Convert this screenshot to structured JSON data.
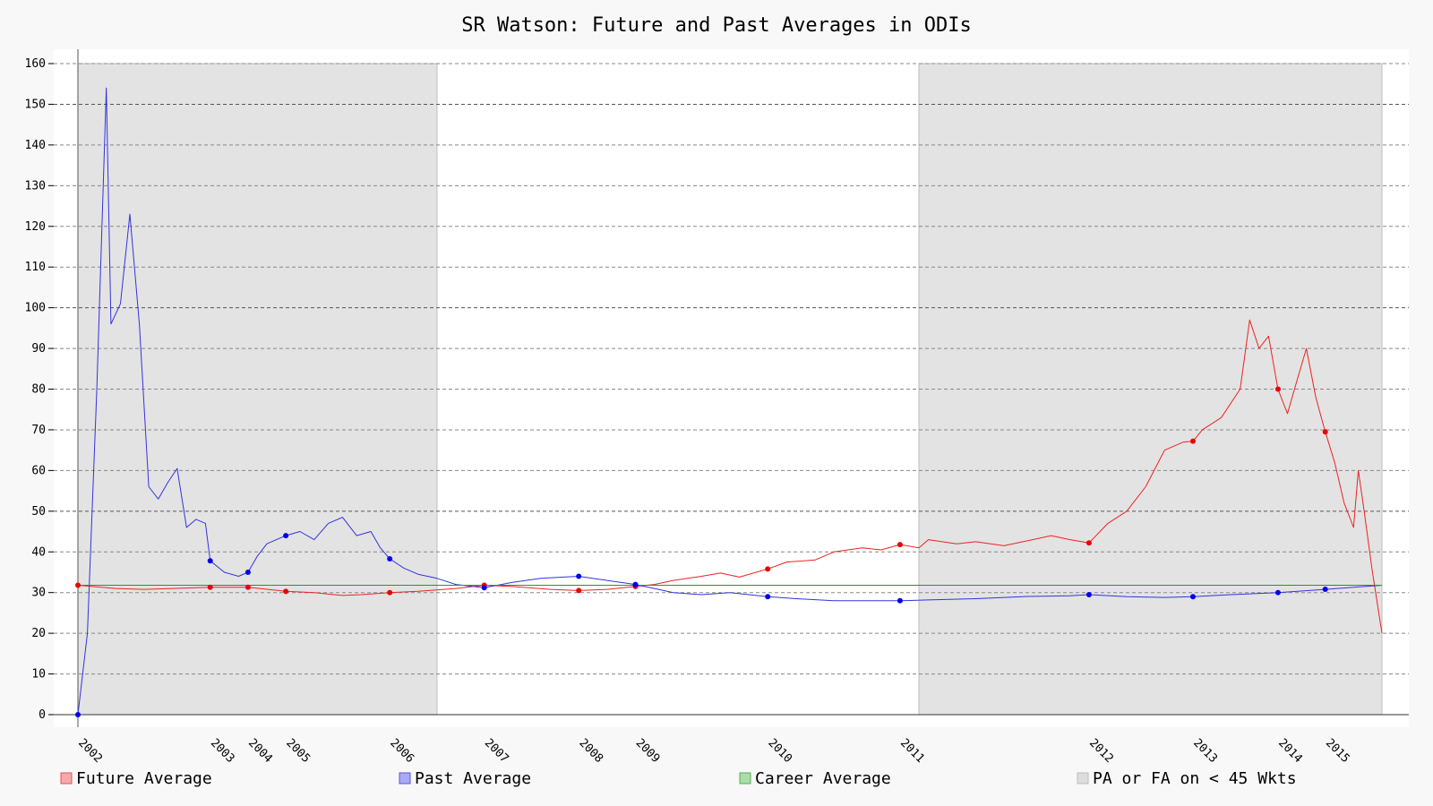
{
  "chart_data": {
    "type": "line",
    "title": "SR Watson: Future and Past Averages in ODIs",
    "xlabel": "",
    "ylabel": "",
    "ylim": [
      0,
      160
    ],
    "y_ticks": [
      0,
      10,
      20,
      30,
      40,
      50,
      60,
      70,
      80,
      90,
      100,
      110,
      120,
      130,
      140,
      150,
      160
    ],
    "grid": true,
    "x_range": [
      2002,
      2015.8
    ],
    "x_tick_labels": [
      {
        "label": "2002",
        "x": 2002.0
      },
      {
        "label": "2003",
        "x": 2003.4
      },
      {
        "label": "2004",
        "x": 2003.8
      },
      {
        "label": "2005",
        "x": 2004.2
      },
      {
        "label": "2006",
        "x": 2005.3
      },
      {
        "label": "2007",
        "x": 2006.3
      },
      {
        "label": "2008",
        "x": 2007.3
      },
      {
        "label": "2009",
        "x": 2007.9
      },
      {
        "label": "2010",
        "x": 2009.3
      },
      {
        "label": "2011",
        "x": 2010.7
      },
      {
        "label": "2012",
        "x": 2012.7
      },
      {
        "label": "2013",
        "x": 2013.8
      },
      {
        "label": "2014",
        "x": 2014.7
      },
      {
        "label": "2015",
        "x": 2015.2
      }
    ],
    "shaded_regions": [
      {
        "x": [
          2002.0,
          2005.8
        ],
        "label": "PA or FA on < 45 Wkts"
      },
      {
        "x": [
          2010.9,
          2015.8
        ],
        "label": "PA or FA on < 45 Wkts"
      }
    ],
    "series": [
      {
        "name": "Future Average",
        "color": "#ee2222",
        "points": [
          [
            2002.0,
            31.8
          ],
          [
            2002.4,
            31.0
          ],
          [
            2002.7,
            30.8
          ],
          [
            2003.0,
            31.0
          ],
          [
            2003.4,
            31.3
          ],
          [
            2003.8,
            31.3
          ],
          [
            2004.2,
            30.3
          ],
          [
            2004.5,
            30.0
          ],
          [
            2004.8,
            29.3
          ],
          [
            2005.0,
            29.5
          ],
          [
            2005.3,
            30.0
          ],
          [
            2005.6,
            30.3
          ],
          [
            2006.0,
            31.0
          ],
          [
            2006.3,
            31.8
          ],
          [
            2006.6,
            31.5
          ],
          [
            2007.0,
            30.8
          ],
          [
            2007.3,
            30.5
          ],
          [
            2007.6,
            30.8
          ],
          [
            2007.9,
            31.5
          ],
          [
            2008.1,
            32.0
          ],
          [
            2008.3,
            33.0
          ],
          [
            2008.6,
            34.0
          ],
          [
            2008.8,
            34.8
          ],
          [
            2009.0,
            33.8
          ],
          [
            2009.3,
            35.8
          ],
          [
            2009.5,
            37.5
          ],
          [
            2009.8,
            38.0
          ],
          [
            2010.0,
            40.0
          ],
          [
            2010.3,
            41.0
          ],
          [
            2010.5,
            40.5
          ],
          [
            2010.7,
            41.8
          ],
          [
            2010.9,
            41.0
          ],
          [
            2011.0,
            43.0
          ],
          [
            2011.3,
            42.0
          ],
          [
            2011.5,
            42.5
          ],
          [
            2011.8,
            41.5
          ],
          [
            2012.0,
            42.5
          ],
          [
            2012.3,
            44.0
          ],
          [
            2012.5,
            43.0
          ],
          [
            2012.7,
            42.2
          ],
          [
            2012.9,
            47.0
          ],
          [
            2013.1,
            50.0
          ],
          [
            2013.3,
            56.0
          ],
          [
            2013.5,
            65.0
          ],
          [
            2013.7,
            67.0
          ],
          [
            2013.8,
            67.2
          ],
          [
            2013.9,
            70.0
          ],
          [
            2014.1,
            73.0
          ],
          [
            2014.3,
            80.0
          ],
          [
            2014.4,
            97.0
          ],
          [
            2014.5,
            90.0
          ],
          [
            2014.6,
            93.0
          ],
          [
            2014.7,
            80.0
          ],
          [
            2014.8,
            74.0
          ],
          [
            2014.9,
            82.0
          ],
          [
            2015.0,
            90.0
          ],
          [
            2015.1,
            78.0
          ],
          [
            2015.2,
            69.5
          ],
          [
            2015.3,
            62.0
          ],
          [
            2015.4,
            52.0
          ],
          [
            2015.5,
            46.0
          ],
          [
            2015.55,
            60.0
          ],
          [
            2015.6,
            52.0
          ],
          [
            2015.7,
            35.0
          ],
          [
            2015.8,
            20.0
          ]
        ]
      },
      {
        "name": "Past Average",
        "color": "#3333dd",
        "points": [
          [
            2002.0,
            0
          ],
          [
            2002.1,
            20.0
          ],
          [
            2002.2,
            80.0
          ],
          [
            2002.3,
            154.0
          ],
          [
            2002.35,
            96.0
          ],
          [
            2002.45,
            101.0
          ],
          [
            2002.55,
            123.0
          ],
          [
            2002.65,
            96.0
          ],
          [
            2002.75,
            56.0
          ],
          [
            2002.85,
            53.0
          ],
          [
            2002.95,
            57.0
          ],
          [
            2003.05,
            60.5
          ],
          [
            2003.15,
            46.0
          ],
          [
            2003.25,
            48.0
          ],
          [
            2003.35,
            47.0
          ],
          [
            2003.4,
            37.8
          ],
          [
            2003.55,
            35.0
          ],
          [
            2003.7,
            34.0
          ],
          [
            2003.8,
            35.0
          ],
          [
            2003.9,
            39.0
          ],
          [
            2004.0,
            42.0
          ],
          [
            2004.2,
            44.0
          ],
          [
            2004.35,
            45.0
          ],
          [
            2004.5,
            43.0
          ],
          [
            2004.65,
            47.0
          ],
          [
            2004.8,
            48.5
          ],
          [
            2004.95,
            44.0
          ],
          [
            2005.1,
            45.0
          ],
          [
            2005.2,
            41.0
          ],
          [
            2005.3,
            38.3
          ],
          [
            2005.45,
            36.0
          ],
          [
            2005.6,
            34.5
          ],
          [
            2005.8,
            33.5
          ],
          [
            2006.0,
            32.0
          ],
          [
            2006.3,
            31.2
          ],
          [
            2006.6,
            32.5
          ],
          [
            2006.9,
            33.5
          ],
          [
            2007.3,
            34.0
          ],
          [
            2007.6,
            33.0
          ],
          [
            2007.9,
            32.0
          ],
          [
            2008.1,
            31.0
          ],
          [
            2008.3,
            30.0
          ],
          [
            2008.6,
            29.5
          ],
          [
            2008.9,
            30.0
          ],
          [
            2009.3,
            29.0
          ],
          [
            2009.6,
            28.5
          ],
          [
            2010.0,
            28.0
          ],
          [
            2010.4,
            28.0
          ],
          [
            2010.7,
            28.0
          ],
          [
            2011.0,
            28.2
          ],
          [
            2011.5,
            28.5
          ],
          [
            2012.0,
            29.0
          ],
          [
            2012.5,
            29.2
          ],
          [
            2012.7,
            29.5
          ],
          [
            2013.1,
            29.0
          ],
          [
            2013.5,
            28.8
          ],
          [
            2013.8,
            29.0
          ],
          [
            2014.2,
            29.5
          ],
          [
            2014.7,
            30.0
          ],
          [
            2015.2,
            30.8
          ],
          [
            2015.5,
            31.3
          ],
          [
            2015.8,
            31.8
          ]
        ]
      },
      {
        "name": "Career Average",
        "color": "#229922",
        "points": [
          [
            2002.0,
            31.8
          ],
          [
            2015.8,
            31.8
          ]
        ]
      }
    ],
    "markers": [
      {
        "series": "Future Average",
        "color": "#ee0000",
        "points": [
          [
            2002.0,
            31.8
          ],
          [
            2003.4,
            31.3
          ],
          [
            2003.8,
            31.3
          ],
          [
            2004.2,
            30.3
          ],
          [
            2005.3,
            30.0
          ],
          [
            2006.3,
            31.8
          ],
          [
            2007.3,
            30.5
          ],
          [
            2007.9,
            31.5
          ],
          [
            2009.3,
            35.8
          ],
          [
            2010.7,
            41.8
          ],
          [
            2012.7,
            42.2
          ],
          [
            2013.8,
            67.2
          ],
          [
            2014.7,
            80.0
          ],
          [
            2015.2,
            69.5
          ]
        ]
      },
      {
        "series": "Past Average",
        "color": "#0000ee",
        "points": [
          [
            2002.0,
            0
          ],
          [
            2003.4,
            37.8
          ],
          [
            2003.8,
            35.0
          ],
          [
            2004.2,
            44.0
          ],
          [
            2005.3,
            38.3
          ],
          [
            2006.3,
            31.2
          ],
          [
            2007.3,
            34.0
          ],
          [
            2007.9,
            32.0
          ],
          [
            2009.3,
            29.0
          ],
          [
            2010.7,
            28.0
          ],
          [
            2012.7,
            29.5
          ],
          [
            2013.8,
            29.0
          ],
          [
            2014.7,
            30.0
          ],
          [
            2015.2,
            30.8
          ]
        ]
      }
    ],
    "legend": {
      "position": "bottom",
      "items": [
        {
          "label": "Future Average",
          "color": "#f4aaaa",
          "border": "#dd5555"
        },
        {
          "label": "Past Average",
          "color": "#aaaaf4",
          "border": "#5555dd"
        },
        {
          "label": "Career Average",
          "color": "#aaddaa",
          "border": "#55aa55"
        },
        {
          "label": "PA or FA on < 45 Wkts",
          "color": "#dddddd",
          "border": "#bbbbbb"
        }
      ]
    }
  }
}
